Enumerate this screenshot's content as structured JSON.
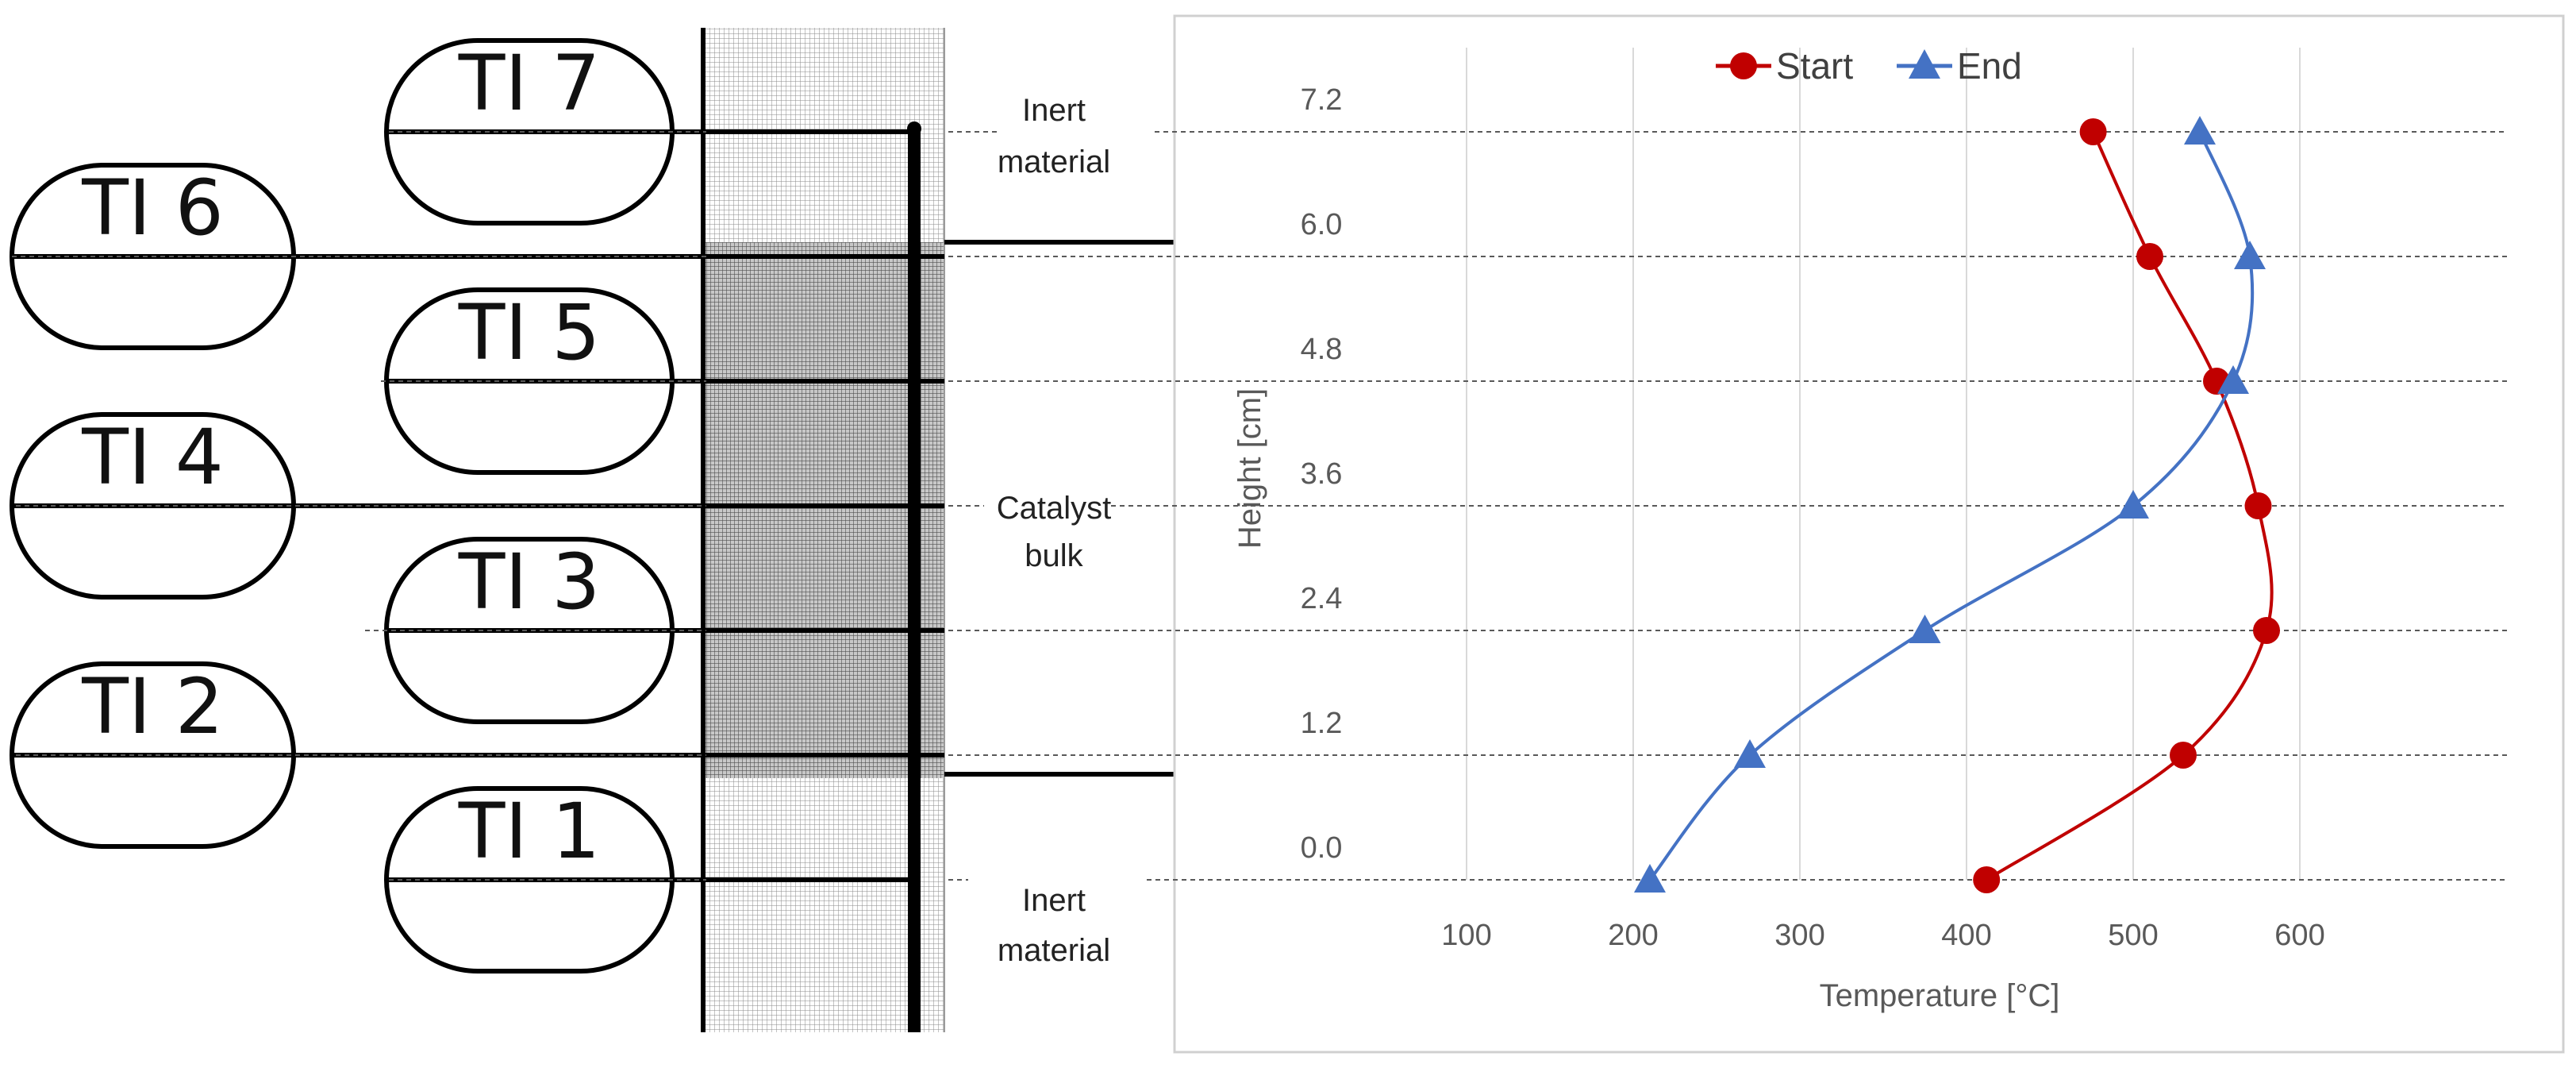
{
  "thermocouples": [
    {
      "label": "TI 7",
      "level": 7.2
    },
    {
      "label": "TI 6",
      "level": 6.0
    },
    {
      "label": "TI 5",
      "level": 4.8
    },
    {
      "label": "TI 4",
      "level": 3.6
    },
    {
      "label": "TI 3",
      "level": 2.4
    },
    {
      "label": "TI 2",
      "level": 1.2
    },
    {
      "label": "TI 1",
      "level": 0.0
    }
  ],
  "zones": {
    "top": [
      "Inert",
      "material"
    ],
    "middle": [
      "Catalyst",
      "bulk"
    ],
    "bottom": [
      "Inert",
      "material"
    ]
  },
  "colors": {
    "start": "#C00000",
    "end": "#4472C4",
    "grid": "#D9D9D9",
    "axis_text": "#595959",
    "guide": "#595959",
    "catalyst_fill": "#BFBFBF",
    "inert_fill": "#E8E8E8"
  },
  "chart_data": {
    "type": "scatter",
    "title": "",
    "xlabel": "Temperature [°C]",
    "ylabel": "Height [cm]",
    "xlim": [
      50,
      650
    ],
    "ylim": [
      0,
      7.2
    ],
    "x_ticks": [
      "100",
      "200",
      "300",
      "400",
      "500",
      "600"
    ],
    "x_tick_values": [
      100,
      200,
      300,
      400,
      500,
      600
    ],
    "y_ticks": [
      "0.0",
      "1.2",
      "2.4",
      "3.6",
      "4.8",
      "6.0",
      "7.2"
    ],
    "y_tick_values": [
      0.0,
      1.2,
      2.4,
      3.6,
      4.8,
      6.0,
      7.2
    ],
    "grid": "vertical",
    "legend": "top",
    "series": [
      {
        "name": "Start",
        "marker": "circle",
        "points": [
          [
            412,
            0.0
          ],
          [
            530,
            1.2
          ],
          [
            580,
            2.4
          ],
          [
            575,
            3.6
          ],
          [
            550,
            4.8
          ],
          [
            510,
            6.0
          ],
          [
            476,
            7.2
          ]
        ]
      },
      {
        "name": "End",
        "marker": "triangle",
        "points": [
          [
            210,
            0.0
          ],
          [
            270,
            1.2
          ],
          [
            375,
            2.4
          ],
          [
            500,
            3.6
          ],
          [
            560,
            4.8
          ],
          [
            570,
            6.0
          ],
          [
            540,
            7.2
          ]
        ]
      }
    ]
  }
}
